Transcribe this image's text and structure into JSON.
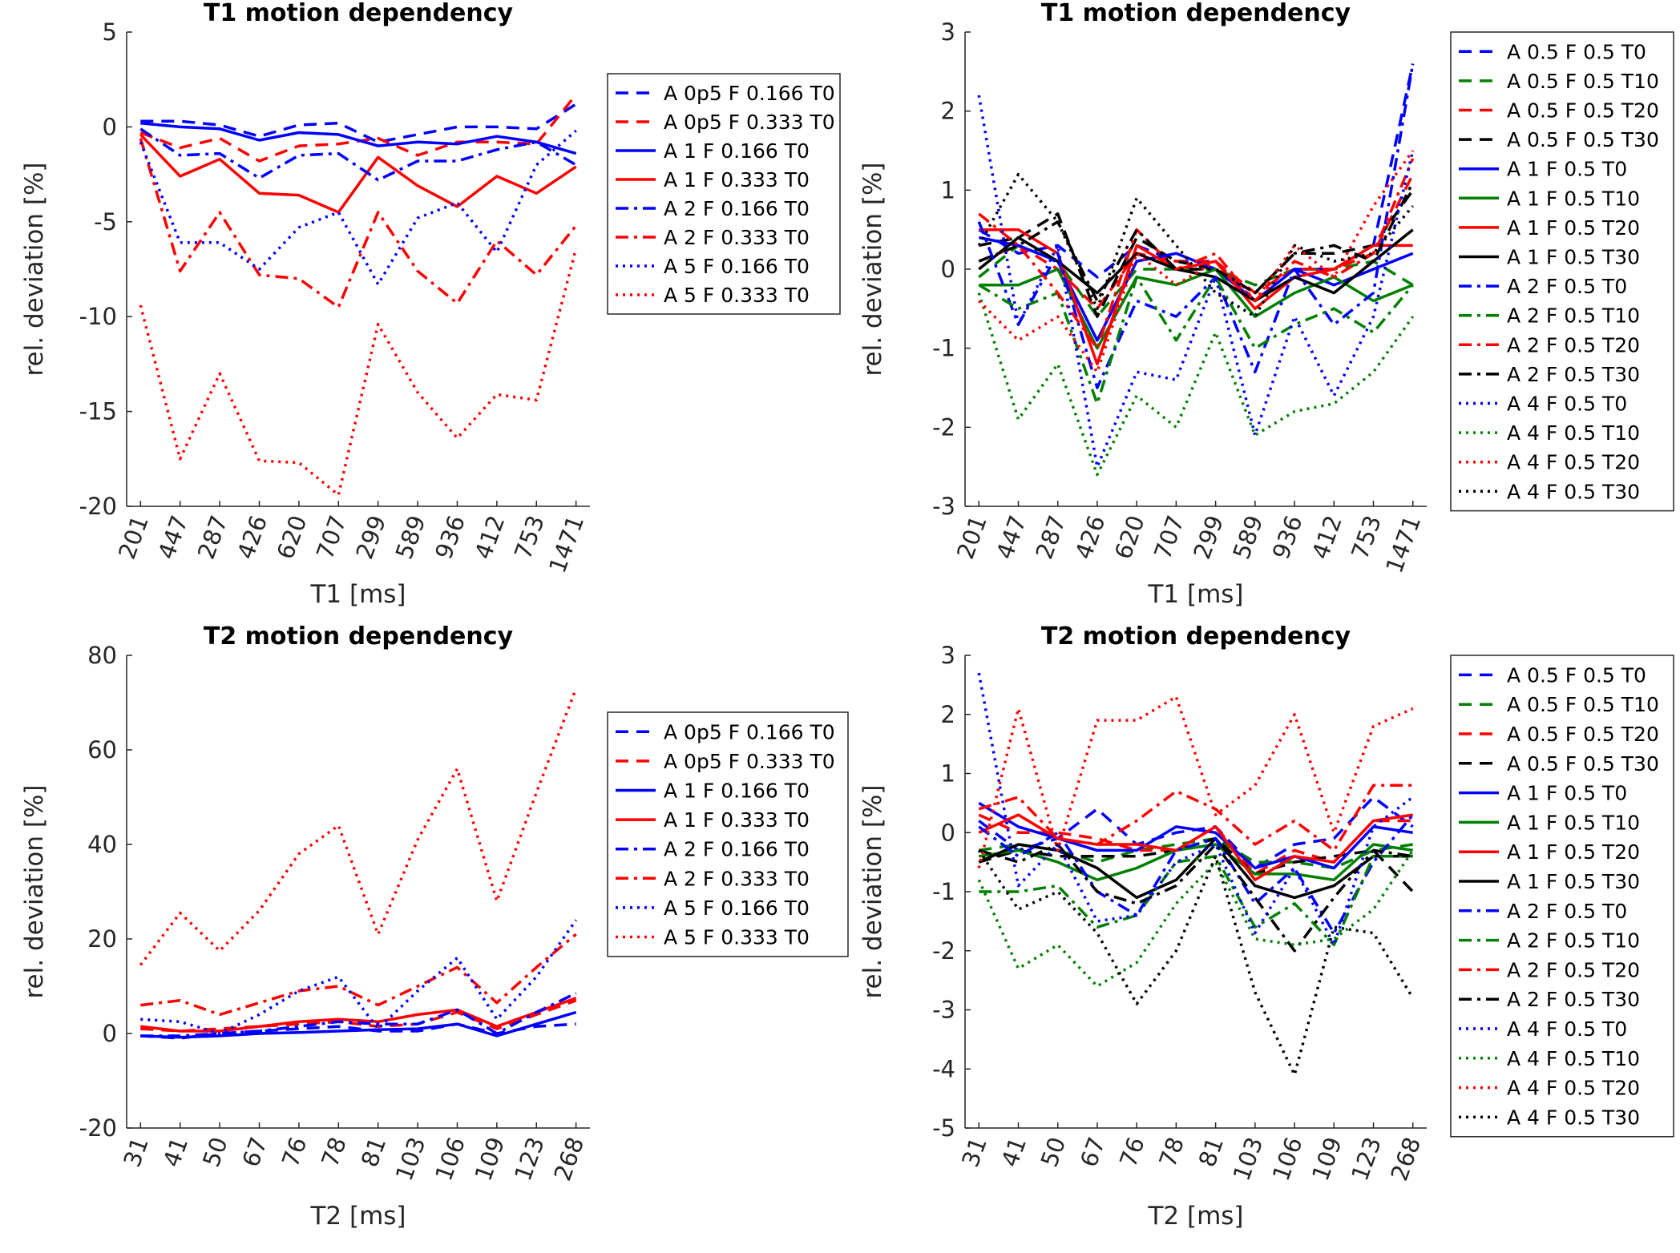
{
  "figure": {
    "name": "T1 / T2 motion dependency figure"
  },
  "colors": {
    "blue": "#0000ff",
    "red": "#ff0000",
    "green": "#008000",
    "black": "#000000",
    "axis": "#262626"
  },
  "chart_data": [
    {
      "type": "line",
      "title": "T1 motion dependency",
      "xlabel": "T1 [ms]",
      "ylabel": "rel. deviation [%]",
      "categories": [
        "201",
        "447",
        "287",
        "426",
        "620",
        "707",
        "299",
        "589",
        "936",
        "412",
        "753",
        "1471"
      ],
      "ylim": [
        -20,
        5
      ],
      "yticks": [
        -20,
        -15,
        -10,
        -5,
        0,
        5
      ],
      "legend": "right",
      "series": [
        {
          "name": "A 0p5 F 0.166 T0",
          "color": "blue",
          "style": "dashed",
          "values": [
            0.3,
            0.3,
            0.1,
            -0.5,
            0.1,
            0.2,
            -0.8,
            -0.4,
            0.0,
            0.0,
            -0.1,
            1.2
          ]
        },
        {
          "name": "A 0p5 F 0.333 T0",
          "color": "red",
          "style": "dashed",
          "values": [
            -0.3,
            -1.1,
            -0.6,
            -1.8,
            -1.0,
            -0.9,
            -0.6,
            -1.5,
            -0.8,
            -0.8,
            -0.9,
            1.7
          ]
        },
        {
          "name": "A 1 F 0.166 T0",
          "color": "blue",
          "style": "solid",
          "values": [
            0.2,
            0.0,
            -0.1,
            -0.7,
            -0.3,
            -0.4,
            -1.0,
            -0.8,
            -0.9,
            -0.5,
            -0.8,
            -1.4
          ]
        },
        {
          "name": "A 1 F 0.333 T0",
          "color": "red",
          "style": "solid",
          "values": [
            -0.4,
            -2.6,
            -1.7,
            -3.5,
            -3.6,
            -4.5,
            -1.6,
            -3.1,
            -4.2,
            -2.6,
            -3.5,
            -2.1
          ]
        },
        {
          "name": "A 2 F 0.166 T0",
          "color": "blue",
          "style": "dashdot",
          "values": [
            -0.1,
            -1.5,
            -1.4,
            -2.7,
            -1.5,
            -1.4,
            -2.8,
            -1.8,
            -1.8,
            -1.2,
            -0.8,
            -2.0
          ]
        },
        {
          "name": "A 2 F 0.333 T0",
          "color": "red",
          "style": "dashdot",
          "values": [
            -0.6,
            -7.6,
            -4.5,
            -7.8,
            -8.0,
            -9.5,
            -4.5,
            -7.6,
            -9.3,
            -6.0,
            -7.8,
            -5.2
          ]
        },
        {
          "name": "A 5 F 0.166 T0",
          "color": "blue",
          "style": "dotted",
          "values": [
            -0.8,
            -6.1,
            -6.1,
            -7.5,
            -5.3,
            -4.5,
            -8.3,
            -4.8,
            -4.0,
            -6.6,
            -2.0,
            -0.2
          ]
        },
        {
          "name": "A 5 F 0.333 T0",
          "color": "red",
          "style": "dotted",
          "values": [
            -9.4,
            -17.5,
            -13.0,
            -17.6,
            -17.7,
            -19.4,
            -10.4,
            -14.0,
            -16.4,
            -14.1,
            -14.4,
            -6.4
          ]
        }
      ]
    },
    {
      "type": "line",
      "title": "T1 motion dependency",
      "xlabel": "T1 [ms]",
      "ylabel": "rel. deviation [%]",
      "categories": [
        "201",
        "447",
        "287",
        "426",
        "620",
        "707",
        "299",
        "589",
        "936",
        "412",
        "753",
        "1471"
      ],
      "ylim": [
        -3,
        3
      ],
      "yticks": [
        -3,
        -2,
        -1,
        0,
        1,
        2,
        3
      ],
      "legend": "right",
      "series": [
        {
          "name": "A 0.5 F 0.5 T0",
          "color": "blue",
          "style": "dashed",
          "values": [
            0.5,
            0.2,
            0.3,
            -0.1,
            0.3,
            0.1,
            0.1,
            -0.4,
            0.0,
            0.0,
            0.3,
            2.6
          ]
        },
        {
          "name": "A 0.5 F 0.5 T10",
          "color": "green",
          "style": "dashed",
          "values": [
            -0.1,
            0.3,
            0.1,
            -0.6,
            0.0,
            0.0,
            0.0,
            -0.2,
            0.0,
            0.0,
            0.1,
            -0.2
          ]
        },
        {
          "name": "A 0.5 F 0.5 T20",
          "color": "red",
          "style": "dashed",
          "values": [
            0.1,
            0.3,
            0.0,
            -0.5,
            0.2,
            0.1,
            0.1,
            -0.3,
            0.0,
            0.0,
            0.2,
            1.2
          ]
        },
        {
          "name": "A 0.5 F 0.5 T30",
          "color": "black",
          "style": "dashed",
          "values": [
            0.3,
            0.4,
            0.7,
            -0.6,
            0.4,
            0.1,
            0.0,
            -0.3,
            0.2,
            0.2,
            0.3,
            1.0
          ]
        },
        {
          "name": "A 1 F 0.5 T0",
          "color": "blue",
          "style": "solid",
          "values": [
            0.4,
            0.3,
            0.1,
            -0.9,
            0.1,
            0.2,
            0.0,
            -0.4,
            0.0,
            -0.2,
            0.0,
            0.2
          ]
        },
        {
          "name": "A 1 F 0.5 T10",
          "color": "green",
          "style": "solid",
          "values": [
            -0.2,
            -0.2,
            0.0,
            -1.0,
            -0.1,
            -0.2,
            0.0,
            -0.6,
            -0.3,
            -0.1,
            -0.4,
            -0.2
          ]
        },
        {
          "name": "A 1 F 0.5 T20",
          "color": "red",
          "style": "solid",
          "values": [
            0.5,
            0.5,
            0.2,
            -1.2,
            0.3,
            0.0,
            0.1,
            -0.5,
            -0.1,
            0.0,
            0.3,
            0.3
          ]
        },
        {
          "name": "A 1 F 0.5 T30",
          "color": "black",
          "style": "solid",
          "values": [
            0.0,
            0.4,
            0.1,
            -0.3,
            0.2,
            0.0,
            -0.1,
            -0.4,
            -0.1,
            -0.3,
            0.1,
            0.5
          ]
        },
        {
          "name": "A 2 F 0.5 T0",
          "color": "blue",
          "style": "dashdot",
          "values": [
            0.6,
            -0.7,
            0.2,
            -1.5,
            -0.4,
            -0.6,
            -0.1,
            -1.3,
            0.0,
            -0.7,
            -0.3,
            2.6
          ]
        },
        {
          "name": "A 2 F 0.5 T10",
          "color": "green",
          "style": "dashdot",
          "values": [
            -0.2,
            -0.5,
            -0.3,
            -1.7,
            -0.1,
            -0.9,
            -0.1,
            -1.0,
            -0.7,
            -0.5,
            -0.8,
            -0.2
          ]
        },
        {
          "name": "A 2 F 0.5 T20",
          "color": "red",
          "style": "dashdot",
          "values": [
            0.7,
            0.3,
            -0.3,
            -1.0,
            0.5,
            0.0,
            0.2,
            -0.4,
            0.1,
            -0.1,
            0.2,
            1.4
          ]
        },
        {
          "name": "A 2 F 0.5 T30",
          "color": "black",
          "style": "dashdot",
          "values": [
            0.1,
            0.3,
            0.6,
            -0.4,
            0.5,
            0.0,
            0.0,
            -0.3,
            0.2,
            0.3,
            0.1,
            1.1
          ]
        },
        {
          "name": "A 4 F 0.5 T0",
          "color": "blue",
          "style": "dotted",
          "values": [
            2.2,
            -0.7,
            0.3,
            -2.5,
            -1.3,
            -1.4,
            -0.1,
            -2.1,
            -0.6,
            -1.6,
            -0.6,
            1.5
          ]
        },
        {
          "name": "A 4 F 0.5 T10",
          "color": "green",
          "style": "dotted",
          "values": [
            -0.3,
            -1.9,
            -1.2,
            -2.6,
            -1.6,
            -2.0,
            -0.8,
            -2.1,
            -1.8,
            -1.7,
            -1.3,
            -0.6
          ]
        },
        {
          "name": "A 4 F 0.5 T20",
          "color": "red",
          "style": "dotted",
          "values": [
            -0.4,
            -0.9,
            -0.6,
            -1.3,
            0.2,
            -0.2,
            0.1,
            -0.4,
            0.3,
            -0.1,
            0.8,
            1.5
          ]
        },
        {
          "name": "A 4 F 0.5 T30",
          "color": "black",
          "style": "dotted",
          "values": [
            0.3,
            1.2,
            0.6,
            -0.5,
            0.9,
            0.3,
            -0.3,
            -0.6,
            0.3,
            0.1,
            0.2,
            0.8
          ]
        }
      ]
    },
    {
      "type": "line",
      "title": "T2 motion dependency",
      "xlabel": "T2 [ms]",
      "ylabel": "rel. deviation [%]",
      "categories": [
        "31",
        "41",
        "50",
        "67",
        "76",
        "78",
        "81",
        "103",
        "106",
        "109",
        "123",
        "268"
      ],
      "ylim": [
        -20,
        80
      ],
      "yticks": [
        -20,
        0,
        20,
        40,
        60,
        80
      ],
      "legend": "right",
      "series": [
        {
          "name": "A 0p5 F 0.166 T0",
          "color": "blue",
          "style": "dashed",
          "values": [
            -0.5,
            -1.0,
            0.0,
            0.5,
            1.0,
            1.5,
            0.5,
            0.5,
            2.0,
            0.0,
            1.5,
            2.0
          ]
        },
        {
          "name": "A 0p5 F 0.333 T0",
          "color": "red",
          "style": "dashed",
          "values": [
            1.0,
            0.5,
            1.0,
            1.5,
            2.0,
            2.5,
            1.5,
            2.0,
            4.5,
            1.0,
            4.0,
            7.0
          ]
        },
        {
          "name": "A 1 F 0.166 T0",
          "color": "blue",
          "style": "solid",
          "values": [
            -0.5,
            -0.8,
            -0.5,
            0.0,
            0.2,
            0.5,
            0.8,
            1.0,
            2.0,
            -0.5,
            2.0,
            4.5
          ]
        },
        {
          "name": "A 1 F 0.333 T0",
          "color": "red",
          "style": "solid",
          "values": [
            1.5,
            0.5,
            0.5,
            1.5,
            2.5,
            3.0,
            2.5,
            4.0,
            5.0,
            1.5,
            4.5,
            7.5
          ]
        },
        {
          "name": "A 2 F 0.166 T0",
          "color": "blue",
          "style": "dashdot",
          "values": [
            -0.5,
            -0.5,
            0.0,
            0.5,
            1.5,
            2.5,
            2.0,
            2.0,
            5.0,
            0.0,
            4.5,
            8.5
          ]
        },
        {
          "name": "A 2 F 0.333 T0",
          "color": "red",
          "style": "dashdot",
          "values": [
            6.0,
            7.0,
            4.0,
            6.5,
            9.0,
            10.0,
            6.0,
            10.0,
            14.0,
            6.5,
            14.0,
            21.0
          ]
        },
        {
          "name": "A 5 F 0.166 T0",
          "color": "blue",
          "style": "dotted",
          "values": [
            3.0,
            2.5,
            0.0,
            4.0,
            9.0,
            12.0,
            1.0,
            9.0,
            16.0,
            3.0,
            12.0,
            24.0
          ]
        },
        {
          "name": "A 5 F 0.333 T0",
          "color": "red",
          "style": "dotted",
          "values": [
            14.5,
            25.5,
            17.5,
            26.0,
            38.0,
            44.0,
            21.0,
            41.0,
            56.0,
            28.0,
            51.0,
            73.0
          ]
        }
      ]
    },
    {
      "type": "line",
      "title": "T2 motion dependency",
      "xlabel": "T2 [ms]",
      "ylabel": "rel. deviation [%]",
      "categories": [
        "31",
        "41",
        "50",
        "67",
        "76",
        "78",
        "81",
        "103",
        "106",
        "109",
        "123",
        "268"
      ],
      "ylim": [
        -5,
        3
      ],
      "yticks": [
        -5,
        -4,
        -3,
        -2,
        -1,
        0,
        1,
        2,
        3
      ],
      "legend": "right",
      "series": [
        {
          "name": "A 0.5 F 0.5 T0",
          "color": "blue",
          "style": "dashed",
          "values": [
            0.2,
            -0.3,
            -0.1,
            0.4,
            -0.2,
            0.0,
            0.1,
            -0.6,
            -0.2,
            -0.1,
            0.6,
            0.1
          ]
        },
        {
          "name": "A 0.5 F 0.5 T10",
          "color": "green",
          "style": "dashed",
          "values": [
            -0.3,
            -0.2,
            -0.3,
            -0.5,
            -0.3,
            -0.2,
            -0.1,
            -0.5,
            -0.5,
            -0.6,
            -0.3,
            -0.2
          ]
        },
        {
          "name": "A 0.5 F 0.5 T20",
          "color": "red",
          "style": "dashed",
          "values": [
            0.3,
            0.0,
            0.0,
            -0.1,
            -0.3,
            -0.3,
            0.1,
            -0.7,
            -0.3,
            -0.5,
            0.2,
            0.2
          ]
        },
        {
          "name": "A 0.5 F 0.5 T30",
          "color": "black",
          "style": "dashed",
          "values": [
            -0.5,
            -0.3,
            -0.4,
            -0.4,
            -0.4,
            -0.3,
            -0.1,
            -0.7,
            -0.5,
            -0.4,
            -0.3,
            -1.0
          ]
        },
        {
          "name": "A 1 F 0.5 T0",
          "color": "blue",
          "style": "solid",
          "values": [
            0.5,
            0.1,
            -0.1,
            -0.3,
            -0.3,
            0.1,
            0.0,
            -0.6,
            -0.4,
            -0.6,
            0.1,
            0.0
          ]
        },
        {
          "name": "A 1 F 0.5 T10",
          "color": "green",
          "style": "solid",
          "values": [
            -0.4,
            -0.3,
            -0.5,
            -0.8,
            -0.6,
            -0.3,
            -0.2,
            -0.7,
            -0.7,
            -0.8,
            -0.2,
            -0.3
          ]
        },
        {
          "name": "A 1 F 0.5 T20",
          "color": "red",
          "style": "solid",
          "values": [
            0.0,
            0.3,
            -0.1,
            -0.2,
            -0.2,
            -0.3,
            0.1,
            -0.8,
            -0.4,
            -0.5,
            0.2,
            0.3
          ]
        },
        {
          "name": "A 1 F 0.5 T30",
          "color": "black",
          "style": "solid",
          "values": [
            -0.5,
            -0.2,
            -0.3,
            -0.6,
            -1.1,
            -0.8,
            -0.1,
            -0.9,
            -1.1,
            -0.9,
            -0.4,
            -0.4
          ]
        },
        {
          "name": "A 2 F 0.5 T0",
          "color": "blue",
          "style": "dashdot",
          "values": [
            0.1,
            -0.4,
            0.0,
            -1.0,
            -1.4,
            -0.3,
            -0.1,
            -1.2,
            -0.6,
            -1.7,
            -0.5,
            0.3
          ]
        },
        {
          "name": "A 2 F 0.5 T10",
          "color": "green",
          "style": "dashdot",
          "values": [
            -1.0,
            -1.0,
            -0.9,
            -1.6,
            -1.4,
            -0.5,
            -0.4,
            -1.6,
            -1.2,
            -1.9,
            -0.4,
            -0.4
          ]
        },
        {
          "name": "A 2 F 0.5 T20",
          "color": "red",
          "style": "dashdot",
          "values": [
            0.4,
            0.6,
            -0.1,
            -0.2,
            0.2,
            0.7,
            0.4,
            -0.2,
            0.2,
            -0.3,
            0.8,
            0.8
          ]
        },
        {
          "name": "A 2 F 0.5 T30",
          "color": "black",
          "style": "dashdot",
          "values": [
            -0.3,
            -0.5,
            -0.2,
            -1.0,
            -1.2,
            -0.9,
            -0.2,
            -1.1,
            -2.0,
            -1.1,
            -0.3,
            -0.4
          ]
        },
        {
          "name": "A 4 F 0.5 T0",
          "color": "blue",
          "style": "dotted",
          "values": [
            2.7,
            -0.9,
            -0.2,
            -1.5,
            -1.4,
            -0.5,
            -0.2,
            -1.7,
            -0.6,
            -1.9,
            0.1,
            0.6
          ]
        },
        {
          "name": "A 4 F 0.5 T10",
          "color": "green",
          "style": "dotted",
          "values": [
            -0.8,
            -2.3,
            -1.9,
            -2.6,
            -2.2,
            -1.2,
            -0.5,
            -1.8,
            -1.9,
            -1.8,
            -1.3,
            -0.3
          ]
        },
        {
          "name": "A 4 F 0.5 T20",
          "color": "red",
          "style": "dotted",
          "values": [
            -0.6,
            2.1,
            -0.3,
            1.9,
            1.9,
            2.3,
            0.3,
            0.8,
            2.0,
            0.0,
            1.8,
            2.1
          ]
        },
        {
          "name": "A 4 F 0.5 T30",
          "color": "black",
          "style": "dotted",
          "values": [
            -0.3,
            -1.3,
            -1.0,
            -1.7,
            -2.9,
            -2.0,
            -0.4,
            -2.7,
            -4.1,
            -1.6,
            -1.7,
            -2.8
          ]
        }
      ]
    }
  ]
}
